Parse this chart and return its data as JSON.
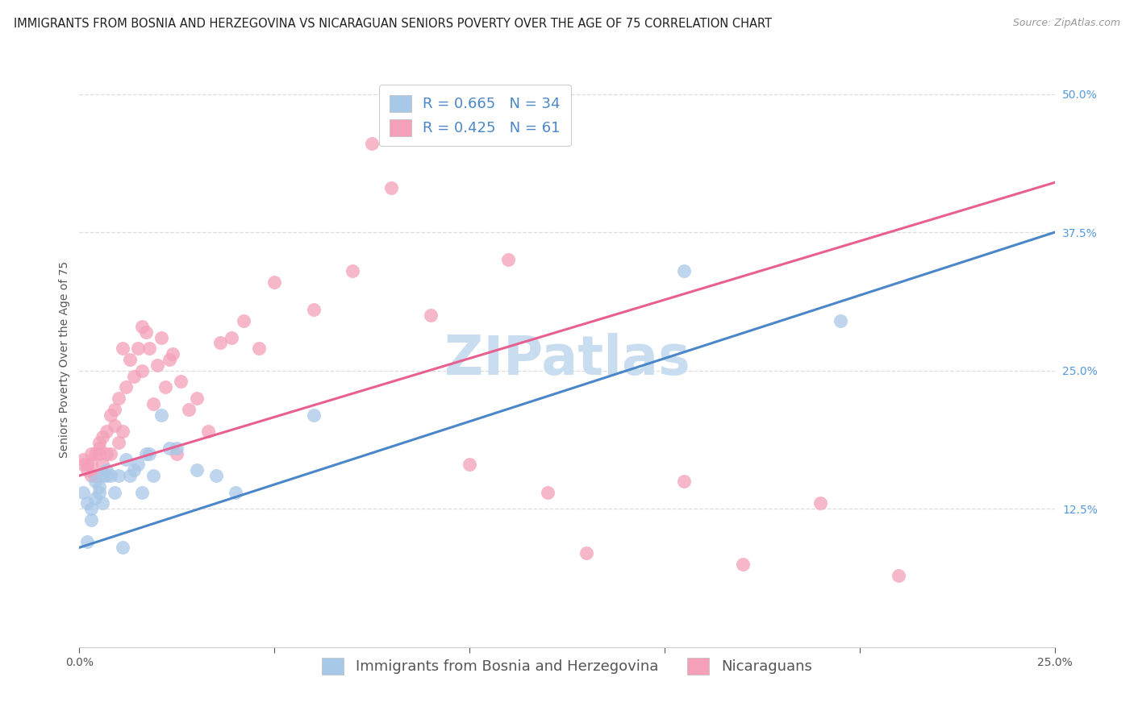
{
  "title": "IMMIGRANTS FROM BOSNIA AND HERZEGOVINA VS NICARAGUAN SENIORS POVERTY OVER THE AGE OF 75 CORRELATION CHART",
  "source": "Source: ZipAtlas.com",
  "ylabel": "Seniors Poverty Over the Age of 75",
  "xlim": [
    0.0,
    0.25
  ],
  "ylim": [
    0.0,
    0.52
  ],
  "xticks": [
    0.0,
    0.05,
    0.1,
    0.15,
    0.2,
    0.25
  ],
  "xtick_labels": [
    "0.0%",
    "",
    "",
    "",
    "",
    "25.0%"
  ],
  "yticks_right": [
    0.125,
    0.25,
    0.375,
    0.5
  ],
  "ytick_right_labels": [
    "12.5%",
    "25.0%",
    "37.5%",
    "50.0%"
  ],
  "blue_scatter_color": "#a8c8e8",
  "pink_scatter_color": "#f4a0b8",
  "blue_line_color": "#4a86c8",
  "pink_line_color": "#e86090",
  "R_blue": 0.665,
  "N_blue": 34,
  "R_pink": 0.425,
  "N_pink": 61,
  "legend_label_blue": "Immigrants from Bosnia and Herzegovina",
  "legend_label_pink": "Nicaraguans",
  "watermark": "ZIPatlas",
  "blue_line": [
    0.0,
    0.09,
    0.25,
    0.375
  ],
  "pink_line": [
    0.0,
    0.155,
    0.25,
    0.42
  ],
  "blue_x": [
    0.001,
    0.002,
    0.002,
    0.003,
    0.003,
    0.004,
    0.004,
    0.005,
    0.005,
    0.006,
    0.006,
    0.007,
    0.007,
    0.008,
    0.009,
    0.01,
    0.011,
    0.012,
    0.013,
    0.014,
    0.015,
    0.016,
    0.017,
    0.018,
    0.019,
    0.021,
    0.023,
    0.025,
    0.03,
    0.035,
    0.04,
    0.06,
    0.155,
    0.195
  ],
  "blue_y": [
    0.14,
    0.13,
    0.095,
    0.125,
    0.115,
    0.135,
    0.15,
    0.145,
    0.14,
    0.13,
    0.155,
    0.16,
    0.155,
    0.155,
    0.14,
    0.155,
    0.09,
    0.17,
    0.155,
    0.16,
    0.165,
    0.14,
    0.175,
    0.175,
    0.155,
    0.21,
    0.18,
    0.18,
    0.16,
    0.155,
    0.14,
    0.21,
    0.34,
    0.295
  ],
  "pink_x": [
    0.001,
    0.001,
    0.002,
    0.002,
    0.003,
    0.003,
    0.003,
    0.004,
    0.004,
    0.005,
    0.005,
    0.005,
    0.006,
    0.006,
    0.007,
    0.007,
    0.008,
    0.008,
    0.009,
    0.009,
    0.01,
    0.01,
    0.011,
    0.011,
    0.012,
    0.013,
    0.014,
    0.015,
    0.016,
    0.016,
    0.017,
    0.018,
    0.019,
    0.02,
    0.021,
    0.022,
    0.023,
    0.024,
    0.025,
    0.026,
    0.028,
    0.03,
    0.033,
    0.036,
    0.039,
    0.042,
    0.046,
    0.05,
    0.06,
    0.07,
    0.075,
    0.08,
    0.09,
    0.1,
    0.11,
    0.12,
    0.13,
    0.155,
    0.17,
    0.19,
    0.21
  ],
  "pink_y": [
    0.165,
    0.17,
    0.16,
    0.165,
    0.155,
    0.165,
    0.175,
    0.155,
    0.175,
    0.175,
    0.18,
    0.185,
    0.165,
    0.19,
    0.175,
    0.195,
    0.175,
    0.21,
    0.2,
    0.215,
    0.185,
    0.225,
    0.195,
    0.27,
    0.235,
    0.26,
    0.245,
    0.27,
    0.25,
    0.29,
    0.285,
    0.27,
    0.22,
    0.255,
    0.28,
    0.235,
    0.26,
    0.265,
    0.175,
    0.24,
    0.215,
    0.225,
    0.195,
    0.275,
    0.28,
    0.295,
    0.27,
    0.33,
    0.305,
    0.34,
    0.455,
    0.415,
    0.3,
    0.165,
    0.35,
    0.14,
    0.085,
    0.15,
    0.075,
    0.13,
    0.065
  ],
  "title_fontsize": 10.5,
  "source_fontsize": 9,
  "axis_label_fontsize": 10,
  "tick_fontsize": 10,
  "legend_fontsize": 13,
  "watermark_fontsize": 48,
  "watermark_color": "#c8ddf0",
  "background_color": "#ffffff",
  "grid_color": "#dddddd",
  "tick_color": "#5599dd"
}
